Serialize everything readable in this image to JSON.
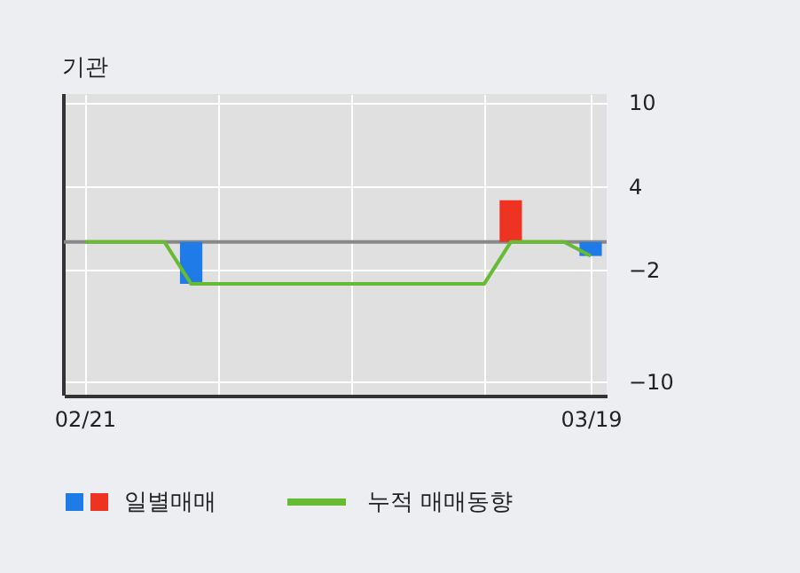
{
  "chart_data": {
    "type": "bar",
    "title": "기관",
    "categories": [
      "02/21",
      null,
      null,
      null,
      null,
      null,
      null,
      null,
      null,
      null,
      null,
      null,
      null,
      null,
      null,
      null,
      null,
      null,
      null,
      "03/19"
    ],
    "series": [
      {
        "name": "일별매매",
        "values": [
          null,
          null,
          null,
          null,
          -3,
          null,
          null,
          null,
          null,
          null,
          null,
          null,
          null,
          null,
          null,
          null,
          3,
          null,
          null,
          -1
        ],
        "colors": [
          null,
          null,
          null,
          null,
          "#1f7be8",
          null,
          null,
          null,
          null,
          null,
          null,
          null,
          null,
          null,
          null,
          null,
          "#ee3322",
          null,
          null,
          "#1f7be8"
        ]
      },
      {
        "name": "누적 매매동향",
        "type": "line",
        "color": "#66bb33",
        "values": [
          0,
          0,
          0,
          0,
          -3,
          -3,
          -3,
          -3,
          -3,
          -3,
          -3,
          -3,
          -3,
          -3,
          -3,
          -3,
          0,
          0,
          0,
          -1
        ]
      }
    ],
    "ylim": [
      -11,
      10.6
    ],
    "yticks": [
      10,
      4,
      -2,
      -10
    ],
    "ref_lines": [
      {
        "axis": "y",
        "value": 0,
        "color": "#888888"
      }
    ],
    "grid": true,
    "legend": "bottom"
  }
}
